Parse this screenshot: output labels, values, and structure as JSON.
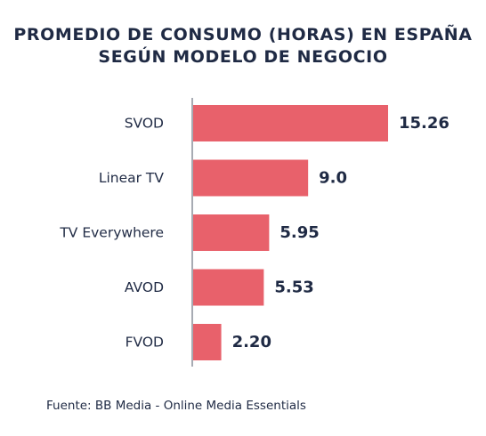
{
  "chart_data": {
    "type": "bar",
    "orientation": "horizontal",
    "title_lines": [
      "PROMEDIO DE CONSUMO (HORAS) EN ESPAÑA",
      "SEGÚN MODELO DE NEGOCIO"
    ],
    "categories": [
      "SVOD",
      "Linear TV",
      "TV Everywhere",
      "AVOD",
      "FVOD"
    ],
    "values": [
      15.26,
      9.0,
      5.95,
      5.53,
      2.2
    ],
    "value_labels": [
      "15.26",
      "9.0",
      "5.95",
      "5.53",
      "2.20"
    ],
    "xlim": [
      0,
      15.26
    ],
    "grid": false,
    "bar_color": "#e8616b",
    "text_color": "#1f2a44"
  },
  "source": "Fuente: BB Media - Online Media Essentials"
}
